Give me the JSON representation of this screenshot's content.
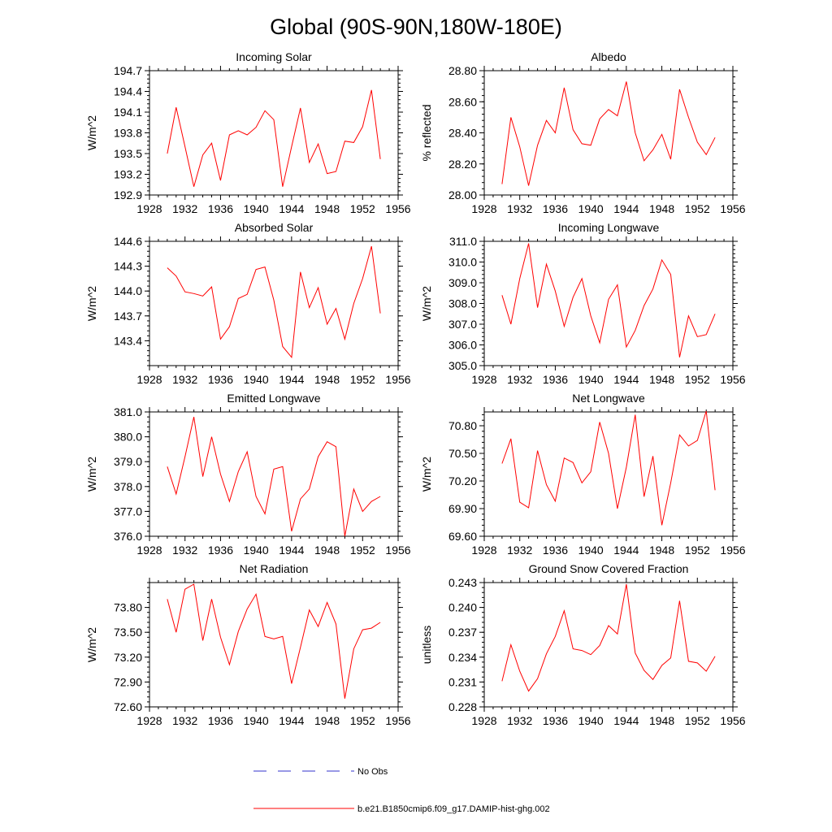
{
  "title": "Global (90S-90N,180W-180E)",
  "colors": {
    "model": "#ff0000",
    "obs": "#3333cc",
    "axis": "#000000"
  },
  "legend": {
    "obs_label": "No Obs",
    "model_label": "b.e21.B1850cmip6.f09_g17.DAMIP-hist-ghg.002"
  },
  "chart_data": [
    {
      "type": "line",
      "title": "Incoming Solar",
      "ylabel": "W/m^2",
      "xlim": [
        1928,
        1956
      ],
      "ylim": [
        192.9,
        194.7
      ],
      "xticks": [
        "1928",
        "1932",
        "1936",
        "1940",
        "1944",
        "1948",
        "1952",
        "1956"
      ],
      "yticks": [
        "192.9",
        "193.2",
        "193.5",
        "193.8",
        "194.1",
        "194.4",
        "194.7"
      ],
      "series": [
        {
          "x": [
            1930,
            1931,
            1932,
            1933,
            1934,
            1935,
            1936,
            1937,
            1938,
            1939,
            1940,
            1941,
            1942,
            1943,
            1944,
            1945,
            1946,
            1947,
            1948,
            1949,
            1950,
            1951,
            1952,
            1953,
            1954
          ],
          "values": [
            193.5,
            194.17,
            193.6,
            193.02,
            193.48,
            193.65,
            193.11,
            193.77,
            193.83,
            193.77,
            193.88,
            194.12,
            193.99,
            193.02,
            193.6,
            194.16,
            193.37,
            193.64,
            193.21,
            193.24,
            193.68,
            193.66,
            193.89,
            194.42,
            193.42
          ]
        }
      ]
    },
    {
      "type": "line",
      "title": "Albedo",
      "ylabel": "% reflected",
      "xlim": [
        1928,
        1956
      ],
      "ylim": [
        28.0,
        28.8
      ],
      "xticks": [
        "1928",
        "1932",
        "1936",
        "1940",
        "1944",
        "1948",
        "1952",
        "1956"
      ],
      "yticks": [
        "28.00",
        "28.20",
        "28.40",
        "28.60",
        "28.80"
      ],
      "series": [
        {
          "x": [
            1930,
            1931,
            1932,
            1933,
            1934,
            1935,
            1936,
            1937,
            1938,
            1939,
            1940,
            1941,
            1942,
            1943,
            1944,
            1945,
            1946,
            1947,
            1948,
            1949,
            1950,
            1951,
            1952,
            1953,
            1954
          ],
          "values": [
            28.07,
            28.5,
            28.31,
            28.06,
            28.32,
            28.48,
            28.4,
            28.69,
            28.42,
            28.33,
            28.32,
            28.49,
            28.55,
            28.51,
            28.73,
            28.4,
            28.22,
            28.29,
            28.39,
            28.23,
            28.68,
            28.5,
            28.34,
            28.26,
            28.37
          ]
        }
      ]
    },
    {
      "type": "line",
      "title": "Absorbed Solar",
      "ylabel": "W/m^2",
      "xlim": [
        1928,
        1956
      ],
      "ylim": [
        143.1,
        144.6
      ],
      "xticks": [
        "1928",
        "1932",
        "1936",
        "1940",
        "1944",
        "1948",
        "1952",
        "1956"
      ],
      "yticks": [
        "143.4",
        "143.7",
        "144.0",
        "144.3",
        "144.6"
      ],
      "series": [
        {
          "x": [
            1930,
            1931,
            1932,
            1933,
            1934,
            1935,
            1936,
            1937,
            1938,
            1939,
            1940,
            1941,
            1942,
            1943,
            1944,
            1945,
            1946,
            1947,
            1948,
            1949,
            1950,
            1951,
            1952,
            1953,
            1954
          ],
          "values": [
            144.28,
            144.18,
            143.99,
            143.97,
            143.94,
            144.05,
            143.42,
            143.57,
            143.91,
            143.96,
            144.26,
            144.29,
            143.89,
            143.33,
            143.2,
            144.23,
            143.8,
            144.04,
            143.6,
            143.79,
            143.42,
            143.85,
            144.15,
            144.54,
            143.73
          ]
        }
      ]
    },
    {
      "type": "line",
      "title": "Incoming Longwave",
      "ylabel": "W/m^2",
      "xlim": [
        1928,
        1956
      ],
      "ylim": [
        305.0,
        311.0
      ],
      "xticks": [
        "1928",
        "1932",
        "1936",
        "1940",
        "1944",
        "1948",
        "1952",
        "1956"
      ],
      "yticks": [
        "305.0",
        "306.0",
        "307.0",
        "308.0",
        "309.0",
        "310.0",
        "311.0"
      ],
      "series": [
        {
          "x": [
            1930,
            1931,
            1932,
            1933,
            1934,
            1935,
            1936,
            1937,
            1938,
            1939,
            1940,
            1941,
            1942,
            1943,
            1944,
            1945,
            1946,
            1947,
            1948,
            1949,
            1950,
            1951,
            1952,
            1953,
            1954
          ],
          "values": [
            308.4,
            307.0,
            309.2,
            310.9,
            307.8,
            309.9,
            308.6,
            306.9,
            308.3,
            309.2,
            307.4,
            306.1,
            308.2,
            308.9,
            305.9,
            306.7,
            307.9,
            308.7,
            310.1,
            309.4,
            305.4,
            307.4,
            306.4,
            306.5,
            307.5
          ]
        }
      ]
    },
    {
      "type": "line",
      "title": "Emitted Longwave",
      "ylabel": "W/m^2",
      "xlim": [
        1928,
        1956
      ],
      "ylim": [
        376.0,
        381.0
      ],
      "xticks": [
        "1928",
        "1932",
        "1936",
        "1940",
        "1944",
        "1948",
        "1952",
        "1956"
      ],
      "yticks": [
        "376.0",
        "377.0",
        "378.0",
        "379.0",
        "380.0",
        "381.0"
      ],
      "series": [
        {
          "x": [
            1930,
            1931,
            1932,
            1933,
            1934,
            1935,
            1936,
            1937,
            1938,
            1939,
            1940,
            1941,
            1942,
            1943,
            1944,
            1945,
            1946,
            1947,
            1948,
            1949,
            1950,
            1951,
            1952,
            1953,
            1954
          ],
          "values": [
            378.8,
            377.7,
            379.2,
            380.8,
            378.4,
            380.0,
            378.5,
            377.4,
            378.6,
            379.4,
            377.6,
            376.9,
            378.7,
            378.8,
            376.2,
            377.5,
            377.9,
            379.2,
            379.8,
            379.6,
            376.0,
            377.9,
            377.0,
            377.4,
            377.6
          ]
        }
      ]
    },
    {
      "type": "line",
      "title": "Net Longwave",
      "ylabel": "W/m^2",
      "xlim": [
        1928,
        1956
      ],
      "ylim": [
        69.6,
        70.95
      ],
      "xticks": [
        "1928",
        "1932",
        "1936",
        "1940",
        "1944",
        "1948",
        "1952",
        "1956"
      ],
      "yticks": [
        "69.60",
        "69.90",
        "70.20",
        "70.50",
        "70.80"
      ],
      "series": [
        {
          "x": [
            1930,
            1931,
            1932,
            1933,
            1934,
            1935,
            1936,
            1937,
            1938,
            1939,
            1940,
            1941,
            1942,
            1943,
            1944,
            1945,
            1946,
            1947,
            1948,
            1949,
            1950,
            1951,
            1952,
            1953,
            1954
          ],
          "values": [
            70.39,
            70.66,
            69.97,
            69.91,
            70.53,
            70.16,
            69.98,
            70.45,
            70.4,
            70.18,
            70.3,
            70.84,
            70.5,
            69.9,
            70.35,
            70.92,
            70.03,
            70.47,
            69.72,
            70.18,
            70.7,
            70.58,
            70.64,
            70.96,
            70.1
          ]
        }
      ]
    },
    {
      "type": "line",
      "title": "Net Radiation",
      "ylabel": "W/m^2",
      "xlim": [
        1928,
        1956
      ],
      "ylim": [
        72.6,
        74.1
      ],
      "xticks": [
        "1928",
        "1932",
        "1936",
        "1940",
        "1944",
        "1948",
        "1952",
        "1956"
      ],
      "yticks": [
        "72.60",
        "72.90",
        "73.20",
        "73.50",
        "73.80"
      ],
      "series": [
        {
          "x": [
            1930,
            1931,
            1932,
            1933,
            1934,
            1935,
            1936,
            1937,
            1938,
            1939,
            1940,
            1941,
            1942,
            1943,
            1944,
            1945,
            1946,
            1947,
            1948,
            1949,
            1950,
            1951,
            1952,
            1953,
            1954
          ],
          "values": [
            73.9,
            73.5,
            74.02,
            74.08,
            73.4,
            73.9,
            73.44,
            73.11,
            73.51,
            73.78,
            73.96,
            73.45,
            73.42,
            73.45,
            72.88,
            73.32,
            73.77,
            73.57,
            73.86,
            73.6,
            72.7,
            73.3,
            73.53,
            73.55,
            73.62
          ]
        }
      ]
    },
    {
      "type": "line",
      "title": "Ground Snow Covered Fraction",
      "ylabel": "unitless",
      "xlim": [
        1928,
        1956
      ],
      "ylim": [
        0.228,
        0.243
      ],
      "xticks": [
        "1928",
        "1932",
        "1936",
        "1940",
        "1944",
        "1948",
        "1952",
        "1956"
      ],
      "yticks": [
        "0.228",
        "0.231",
        "0.234",
        "0.237",
        "0.240",
        "0.243"
      ],
      "series": [
        {
          "x": [
            1930,
            1931,
            1932,
            1933,
            1934,
            1935,
            1936,
            1937,
            1938,
            1939,
            1940,
            1941,
            1942,
            1943,
            1944,
            1945,
            1946,
            1947,
            1948,
            1949,
            1950,
            1951,
            1952,
            1953,
            1954
          ],
          "values": [
            0.2311,
            0.2355,
            0.2323,
            0.2299,
            0.2314,
            0.2344,
            0.2365,
            0.2396,
            0.235,
            0.2348,
            0.2343,
            0.2354,
            0.2378,
            0.2368,
            0.2428,
            0.2345,
            0.2324,
            0.2313,
            0.233,
            0.2339,
            0.2408,
            0.2335,
            0.2333,
            0.2323,
            0.2341
          ]
        }
      ]
    }
  ]
}
